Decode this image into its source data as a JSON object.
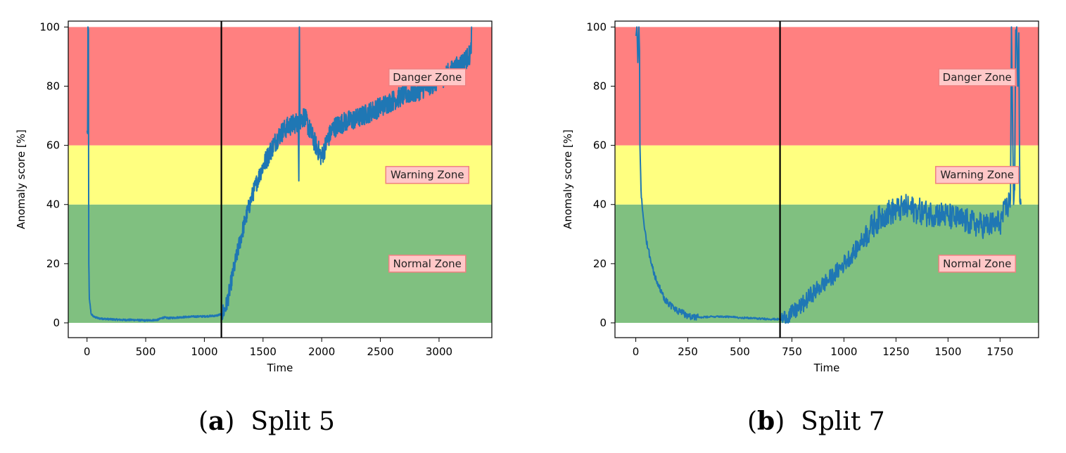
{
  "chart_data": [
    {
      "type": "line",
      "caption_letter": "a",
      "caption_text": "Split 5",
      "xlabel": "Time",
      "ylabel": "Anomaly score [%]",
      "xlim": [
        -160,
        3450
      ],
      "ylim": [
        -5,
        102
      ],
      "xticks": [
        0,
        500,
        1000,
        1500,
        2000,
        2500,
        3000
      ],
      "yticks": [
        0,
        20,
        40,
        60,
        80,
        100
      ],
      "vline_x": 1145,
      "zones": [
        {
          "name": "Normal Zone",
          "from": 0,
          "to": 40,
          "color": "#80c080"
        },
        {
          "name": "Warning Zone",
          "from": 40,
          "to": 60,
          "color": "#ffff80"
        },
        {
          "name": "Danger Zone",
          "from": 60,
          "to": 100,
          "color": "#ff8080"
        }
      ],
      "zone_labels": [
        {
          "text": "Danger Zone",
          "x": 2900,
          "y": 83
        },
        {
          "text": "Warning Zone",
          "x": 2900,
          "y": 50
        },
        {
          "text": "Normal Zone",
          "x": 2900,
          "y": 20
        }
      ],
      "series": [
        {
          "name": "Anomaly score",
          "color": "#1f77b4",
          "noise": [
            {
              "until": 1150,
              "amp": 0.3
            },
            {
              "until": 1500,
              "amp": 3
            },
            {
              "until": 3300,
              "amp": 3.5
            }
          ],
          "points": [
            [
              0,
              65
            ],
            [
              5,
              64
            ],
            [
              8,
              100
            ],
            [
              12,
              99
            ],
            [
              15,
              20
            ],
            [
              20,
              8
            ],
            [
              35,
              3
            ],
            [
              60,
              2
            ],
            [
              100,
              1.5
            ],
            [
              200,
              1.2
            ],
            [
              300,
              1.0
            ],
            [
              400,
              1.0
            ],
            [
              500,
              0.8
            ],
            [
              600,
              1.0
            ],
            [
              650,
              1.8
            ],
            [
              700,
              1.6
            ],
            [
              800,
              1.9
            ],
            [
              900,
              2.1
            ],
            [
              1000,
              2.2
            ],
            [
              1100,
              2.4
            ],
            [
              1150,
              3
            ],
            [
              1180,
              5
            ],
            [
              1200,
              8
            ],
            [
              1250,
              18
            ],
            [
              1300,
              27
            ],
            [
              1350,
              35
            ],
            [
              1400,
              42
            ],
            [
              1450,
              48
            ],
            [
              1500,
              53
            ],
            [
              1550,
              57
            ],
            [
              1600,
              61
            ],
            [
              1650,
              64
            ],
            [
              1700,
              66
            ],
            [
              1750,
              67
            ],
            [
              1800,
              68
            ],
            [
              1805,
              48
            ],
            [
              1810,
              100
            ],
            [
              1815,
              68
            ],
            [
              1850,
              70
            ],
            [
              1900,
              65
            ],
            [
              1950,
              60
            ],
            [
              2000,
              56
            ],
            [
              2050,
              62
            ],
            [
              2100,
              66
            ],
            [
              2200,
              68
            ],
            [
              2300,
              69
            ],
            [
              2400,
              71
            ],
            [
              2500,
              73
            ],
            [
              2600,
              75
            ],
            [
              2700,
              77
            ],
            [
              2800,
              78
            ],
            [
              2900,
              80
            ],
            [
              3000,
              82
            ],
            [
              3100,
              85
            ],
            [
              3200,
              88
            ],
            [
              3250,
              90
            ],
            [
              3270,
              91
            ],
            [
              3280,
              100
            ]
          ]
        }
      ]
    },
    {
      "type": "line",
      "caption_letter": "b",
      "caption_text": "Split 7",
      "xlabel": "Time",
      "ylabel": "Anomaly score [%]",
      "xlim": [
        -100,
        1935
      ],
      "ylim": [
        -5,
        102
      ],
      "xticks": [
        0,
        250,
        500,
        750,
        1000,
        1250,
        1500,
        1750
      ],
      "yticks": [
        0,
        20,
        40,
        60,
        80,
        100
      ],
      "vline_x": 693,
      "zones": [
        {
          "name": "Normal Zone",
          "from": 0,
          "to": 40,
          "color": "#80c080"
        },
        {
          "name": "Warning Zone",
          "from": 40,
          "to": 60,
          "color": "#ffff80"
        },
        {
          "name": "Danger Zone",
          "from": 60,
          "to": 100,
          "color": "#ff8080"
        }
      ],
      "zone_labels": [
        {
          "text": "Danger Zone",
          "x": 1640,
          "y": 83
        },
        {
          "text": "Warning Zone",
          "x": 1640,
          "y": 50
        },
        {
          "text": "Normal Zone",
          "x": 1640,
          "y": 20
        }
      ],
      "series": [
        {
          "name": "Anomaly score",
          "color": "#1f77b4",
          "noise": [
            {
              "until": 300,
              "amp": 1.2
            },
            {
              "until": 700,
              "amp": 0.3
            },
            {
              "until": 1100,
              "amp": 3
            },
            {
              "until": 1800,
              "amp": 4.5
            },
            {
              "until": 1900,
              "amp": 1.5
            }
          ],
          "points": [
            [
              0,
              97
            ],
            [
              5,
              100
            ],
            [
              10,
              88
            ],
            [
              15,
              100
            ],
            [
              18,
              92
            ],
            [
              20,
              60
            ],
            [
              25,
              45
            ],
            [
              30,
              40
            ],
            [
              40,
              33
            ],
            [
              50,
              28
            ],
            [
              60,
              25
            ],
            [
              75,
              20
            ],
            [
              100,
              14
            ],
            [
              125,
              10
            ],
            [
              150,
              7
            ],
            [
              200,
              4
            ],
            [
              250,
              2.5
            ],
            [
              300,
              1.8
            ],
            [
              350,
              2
            ],
            [
              400,
              2.2
            ],
            [
              500,
              1.8
            ],
            [
              600,
              1.4
            ],
            [
              690,
              1.2
            ],
            [
              700,
              1
            ],
            [
              750,
              3
            ],
            [
              800,
              6
            ],
            [
              850,
              10
            ],
            [
              900,
              13
            ],
            [
              950,
              16
            ],
            [
              1000,
              20
            ],
            [
              1050,
              24
            ],
            [
              1100,
              29
            ],
            [
              1150,
              34
            ],
            [
              1200,
              37
            ],
            [
              1250,
              38
            ],
            [
              1300,
              39
            ],
            [
              1350,
              38
            ],
            [
              1400,
              37
            ],
            [
              1450,
              37
            ],
            [
              1500,
              36
            ],
            [
              1550,
              35
            ],
            [
              1600,
              34
            ],
            [
              1650,
              33
            ],
            [
              1700,
              33
            ],
            [
              1750,
              34
            ],
            [
              1790,
              40
            ],
            [
              1800,
              42
            ],
            [
              1805,
              100
            ],
            [
              1810,
              70
            ],
            [
              1815,
              40
            ],
            [
              1820,
              45
            ],
            [
              1825,
              99
            ],
            [
              1830,
              100
            ],
            [
              1835,
              80
            ],
            [
              1840,
              98
            ],
            [
              1845,
              41
            ],
            [
              1850,
              40
            ]
          ]
        }
      ]
    }
  ]
}
